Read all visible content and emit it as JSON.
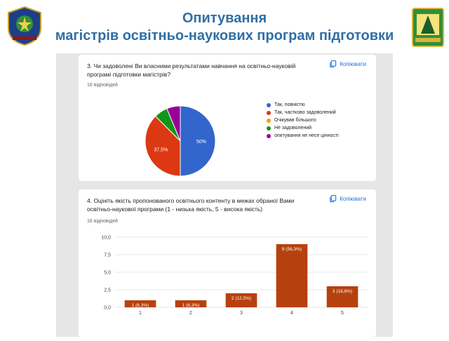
{
  "header": {
    "title_line1": "Опитування",
    "title_line2": "магістрів освітньо-наукових програм підготовки"
  },
  "colors": {
    "title": "#2f6fa6",
    "pie": [
      "#3366cc",
      "#dc3912",
      "#ff9900",
      "#109618",
      "#990099"
    ],
    "bar": "#b7410e",
    "link": "#1a73e8"
  },
  "card1": {
    "question": "3. Чи задоволені Ви власними результатами навчання на освітньо-науковій програмі підготовки магістрів?",
    "responses": "16 відповідей",
    "copy_label": "Копіювати",
    "copy_icon": "copy-icon"
  },
  "card2": {
    "question": "4. Оцініть якість пропонованого освітнього контенту в межах обраної Вами освітньо-наукової програми (1 - низька якість, 5 - висока якість)",
    "responses": "16 відповідей",
    "copy_label": "Копіювати",
    "copy_icon": "copy-icon"
  },
  "chart_data": [
    {
      "type": "pie",
      "labels": [
        "Так, повністю",
        "Так, частково задоволений",
        "Очікував більшого",
        "Не задоволений",
        "опитування не несе цінності"
      ],
      "values": [
        50,
        37.5,
        0,
        6.25,
        6.25
      ],
      "slice_labels": [
        "50%",
        "37,5%",
        "",
        "",
        ""
      ],
      "legend": "right"
    },
    {
      "type": "bar",
      "categories": [
        "1",
        "2",
        "3",
        "4",
        "5"
      ],
      "values": [
        1,
        1,
        2,
        9,
        3
      ],
      "data_labels": [
        "1 (6,3%)",
        "1 (6,3%)",
        "2 (12,5%)",
        "9 (56,3%)",
        "3 (18,8%)"
      ],
      "ylim": [
        0,
        10
      ],
      "yticks": [
        "0,0",
        "2,5",
        "5,0",
        "7,5",
        "10,0"
      ],
      "grid": true
    }
  ]
}
